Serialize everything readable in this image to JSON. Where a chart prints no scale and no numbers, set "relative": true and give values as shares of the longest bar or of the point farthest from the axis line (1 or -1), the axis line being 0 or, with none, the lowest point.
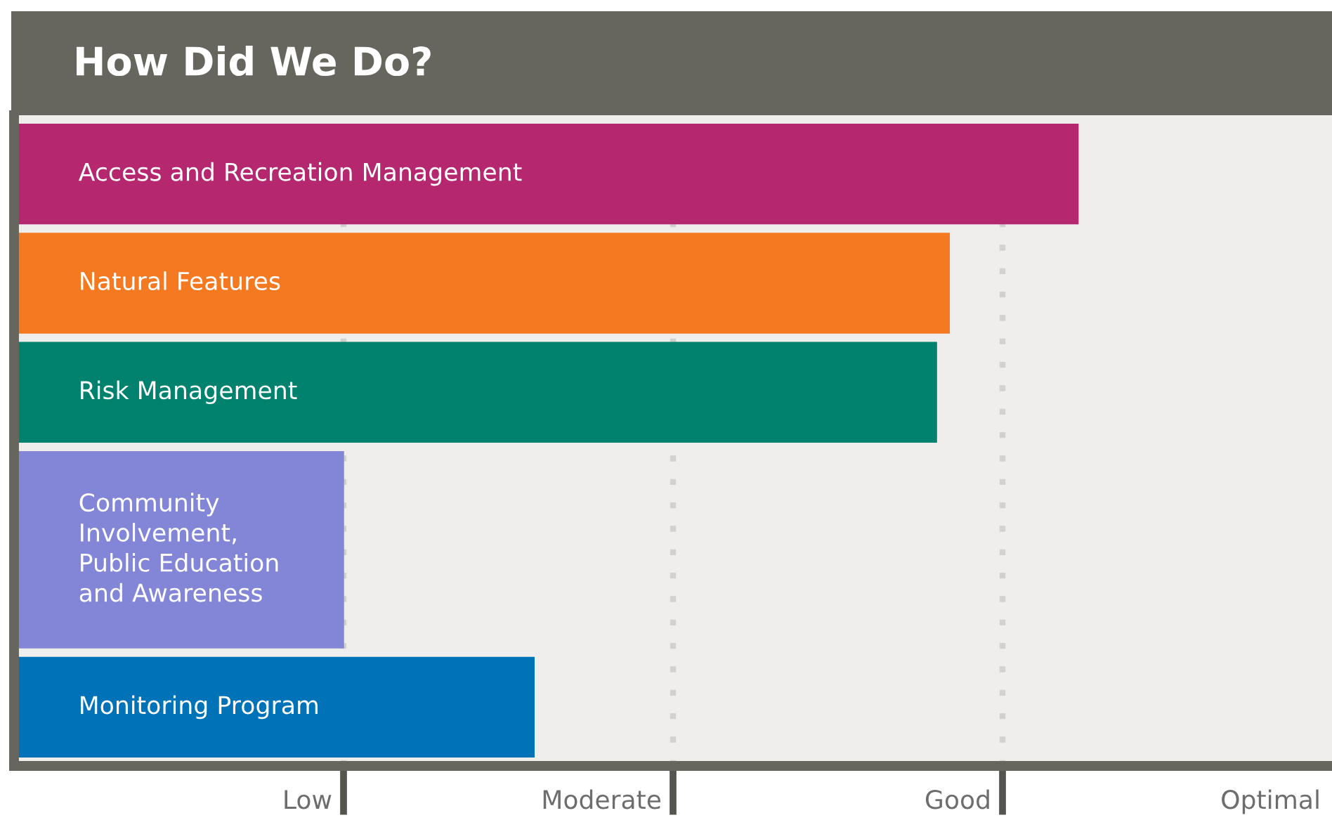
{
  "chart_data": {
    "type": "bar",
    "orientation": "horizontal",
    "relative": true,
    "title": "How Did We Do?",
    "categories": [
      "Access and Recreation Management",
      "Natural Features",
      "Risk Management",
      "Community\nInvolvement,\nPublic Education\nand Awareness",
      "Monitoring Program"
    ],
    "values": [
      1,
      0.879,
      0.867,
      0.31,
      0.489
    ],
    "colors": [
      "#b5276f",
      "#f47920",
      "#00826f",
      "#8385d6",
      "#0072b8"
    ],
    "annotations": [
      "Low",
      "Moderate",
      "Good",
      "Optimal"
    ],
    "grid": "x"
  }
}
